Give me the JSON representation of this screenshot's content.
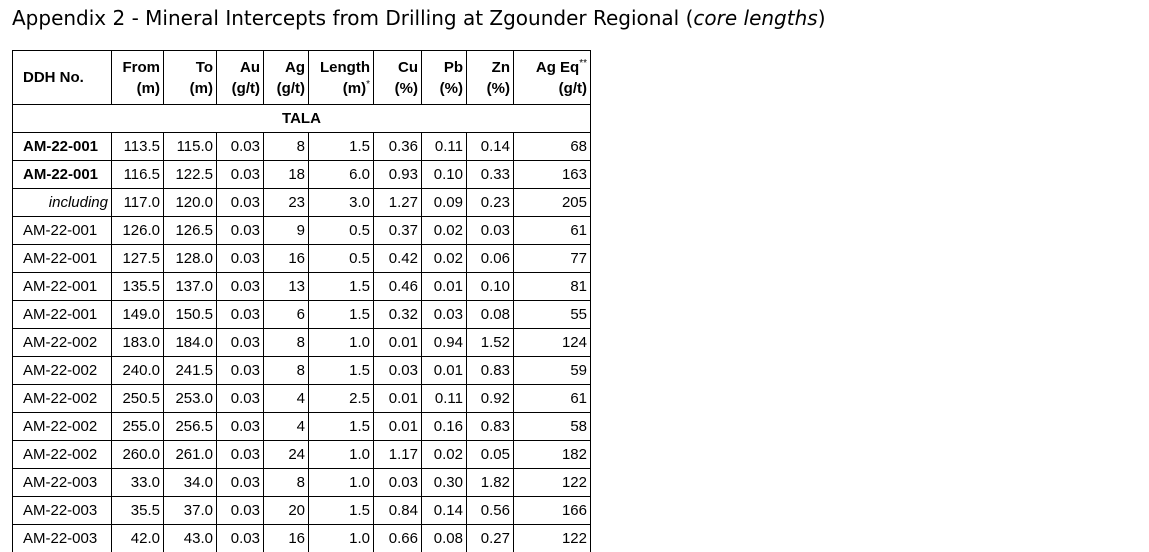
{
  "title": {
    "prefix": "Appendix 2 - Mineral Intercepts from Drilling at Zgounder Regional (",
    "italic": "core lengths",
    "suffix": ")"
  },
  "table": {
    "headers": [
      {
        "top": "DDH No."
      },
      {
        "top": "From",
        "bottom": "(m)"
      },
      {
        "top": "To",
        "bottom": "(m)"
      },
      {
        "top": "Au",
        "bottom": "(g/t)"
      },
      {
        "top": "Ag",
        "bottom": "(g/t)"
      },
      {
        "top": "Length",
        "bottom": "(m)",
        "bottom_sup": "*"
      },
      {
        "top": "Cu",
        "bottom": "(%)"
      },
      {
        "top": "Pb",
        "bottom": "(%)"
      },
      {
        "top": "Zn",
        "bottom": "(%)"
      },
      {
        "top": "Ag Eq",
        "top_sup": "**",
        "bottom": "(g/t)"
      }
    ],
    "section": "TALA",
    "rows": [
      [
        "AM-22-001",
        "113.5",
        "115.0",
        "0.03",
        "8",
        "1.5",
        "0.36",
        "0.11",
        "0.14",
        "68"
      ],
      [
        "AM-22-001",
        "116.5",
        "122.5",
        "0.03",
        "18",
        "6.0",
        "0.93",
        "0.10",
        "0.33",
        "163"
      ],
      [
        "including",
        "117.0",
        "120.0",
        "0.03",
        "23",
        "3.0",
        "1.27",
        "0.09",
        "0.23",
        "205"
      ],
      [
        "AM-22-001",
        "126.0",
        "126.5",
        "0.03",
        "9",
        "0.5",
        "0.37",
        "0.02",
        "0.03",
        "61"
      ],
      [
        "AM-22-001",
        "127.5",
        "128.0",
        "0.03",
        "16",
        "0.5",
        "0.42",
        "0.02",
        "0.06",
        "77"
      ],
      [
        "AM-22-001",
        "135.5",
        "137.0",
        "0.03",
        "13",
        "1.5",
        "0.46",
        "0.01",
        "0.10",
        "81"
      ],
      [
        "AM-22-001",
        "149.0",
        "150.5",
        "0.03",
        "6",
        "1.5",
        "0.32",
        "0.03",
        "0.08",
        "55"
      ],
      [
        "AM-22-002",
        "183.0",
        "184.0",
        "0.03",
        "8",
        "1.0",
        "0.01",
        "0.94",
        "1.52",
        "124"
      ],
      [
        "AM-22-002",
        "240.0",
        "241.5",
        "0.03",
        "8",
        "1.5",
        "0.03",
        "0.01",
        "0.83",
        "59"
      ],
      [
        "AM-22-002",
        "250.5",
        "253.0",
        "0.03",
        "4",
        "2.5",
        "0.01",
        "0.11",
        "0.92",
        "61"
      ],
      [
        "AM-22-002",
        "255.0",
        "256.5",
        "0.03",
        "4",
        "1.5",
        "0.01",
        "0.16",
        "0.83",
        "58"
      ],
      [
        "AM-22-002",
        "260.0",
        "261.0",
        "0.03",
        "24",
        "1.0",
        "1.17",
        "0.02",
        "0.05",
        "182"
      ],
      [
        "AM-22-003",
        "33.0",
        "34.0",
        "0.03",
        "8",
        "1.0",
        "0.03",
        "0.30",
        "1.82",
        "122"
      ],
      [
        "AM-22-003",
        "35.5",
        "37.0",
        "0.03",
        "20",
        "1.5",
        "0.84",
        "0.14",
        "0.56",
        "166"
      ],
      [
        "AM-22-003",
        "42.0",
        "43.0",
        "0.03",
        "16",
        "1.0",
        "0.66",
        "0.08",
        "0.27",
        "122"
      ]
    ]
  }
}
